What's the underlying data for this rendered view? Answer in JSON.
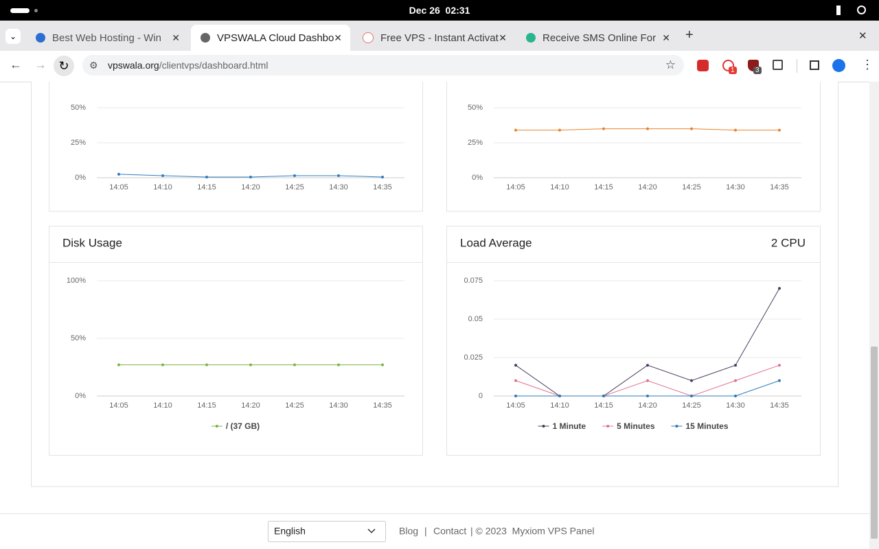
{
  "system_bar": {
    "clock": "Dec 26  02:31"
  },
  "tabs": [
    {
      "title": "Best Web Hosting - Win"
    },
    {
      "title": "VPSWALA Cloud Dashbo"
    },
    {
      "title": "Free VPS - Instant Activat"
    },
    {
      "title": "Receive SMS Online For"
    }
  ],
  "address_bar": {
    "domain": "vpswala.org",
    "path": "/clientvps/dashboard.html"
  },
  "extension_badges": [
    "1",
    "3"
  ],
  "chart_data": [
    {
      "type": "line",
      "categories": [
        "14:05",
        "14:10",
        "14:15",
        "14:20",
        "14:25",
        "14:30",
        "14:35"
      ],
      "ylim": [
        0,
        50
      ],
      "yticks": [
        {
          "value": 0,
          "label": "0%"
        },
        {
          "value": 25,
          "label": "25%"
        },
        {
          "value": 50,
          "label": "50%"
        }
      ],
      "grid": true,
      "series": [
        {
          "color": "#2f7bbf",
          "values": [
            2.5,
            1.5,
            0.5,
            0.5,
            1.5,
            1.5,
            0.5
          ]
        }
      ]
    },
    {
      "type": "line",
      "categories": [
        "14:05",
        "14:10",
        "14:15",
        "14:20",
        "14:25",
        "14:30",
        "14:35"
      ],
      "ylim": [
        0,
        50
      ],
      "yticks": [
        {
          "value": 0,
          "label": "0%"
        },
        {
          "value": 25,
          "label": "25%"
        },
        {
          "value": 50,
          "label": "50%"
        }
      ],
      "grid": true,
      "series": [
        {
          "color": "#e6822a",
          "values": [
            34,
            34,
            35,
            35,
            35,
            34,
            34
          ]
        }
      ]
    },
    {
      "type": "line",
      "title": "Disk Usage",
      "categories": [
        "14:05",
        "14:10",
        "14:15",
        "14:20",
        "14:25",
        "14:30",
        "14:35"
      ],
      "ylim": [
        0,
        100
      ],
      "yticks": [
        {
          "value": 0,
          "label": "0%"
        },
        {
          "value": 50,
          "label": "50%"
        },
        {
          "value": 100,
          "label": "100%"
        }
      ],
      "grid": true,
      "series": [
        {
          "name": "/ (37 GB)",
          "color": "#7cb342",
          "values": [
            27,
            27,
            27,
            27,
            27,
            27,
            27
          ]
        }
      ]
    },
    {
      "type": "line",
      "title": "Load Average",
      "subtitle": "2 CPU",
      "categories": [
        "14:05",
        "14:10",
        "14:15",
        "14:20",
        "14:25",
        "14:30",
        "14:35"
      ],
      "ylim": [
        0,
        0.075
      ],
      "yticks": [
        0,
        0.025,
        0.05,
        0.075
      ],
      "grid": true,
      "series": [
        {
          "name": "1 Minute",
          "color": "#4b3b60",
          "values": [
            0.02,
            0,
            0,
            0.02,
            0.01,
            0.02,
            0.07
          ]
        },
        {
          "name": "5 Minutes",
          "color": "#e0708c",
          "values": [
            0.01,
            0,
            0,
            0.01,
            0,
            0.01,
            0.02
          ]
        },
        {
          "name": "15 Minutes",
          "color": "#2a7ab8",
          "values": [
            0,
            0,
            0,
            0,
            0,
            0,
            0.01
          ]
        }
      ]
    }
  ],
  "footer": {
    "language": "English",
    "links": [
      "Blog",
      "Contact"
    ],
    "separator": "|",
    "copyright": "| © 2023  Myxiom VPS Panel"
  }
}
